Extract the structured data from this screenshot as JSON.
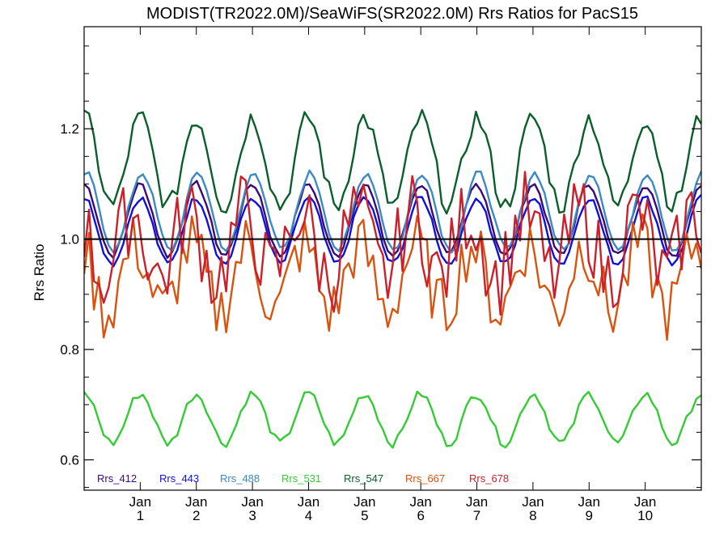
{
  "chart_data": {
    "type": "line",
    "title": "MODIST(TR2022.0M)/SeaWiFS(SR2022.0M)  Rrs Ratios for PacS15",
    "ylabel": "Rrs Ratio",
    "xlabel": "",
    "xlim": [
      0,
      11
    ],
    "ylim": [
      0.545,
      1.385
    ],
    "yticks": [
      0.6,
      0.8,
      1.0,
      1.2
    ],
    "ytick_labels": [
      "0.6",
      "0.8",
      "1.0",
      "1.2"
    ],
    "xticks": [
      {
        "x": 1,
        "top": "Jan",
        "bottom": "1"
      },
      {
        "x": 2,
        "top": "Jan",
        "bottom": "2"
      },
      {
        "x": 3,
        "top": "Jan",
        "bottom": "3"
      },
      {
        "x": 4,
        "top": "Jan",
        "bottom": "4"
      },
      {
        "x": 5,
        "top": "Jan",
        "bottom": "5"
      },
      {
        "x": 6,
        "top": "Jan",
        "bottom": "6"
      },
      {
        "x": 7,
        "top": "Jan",
        "bottom": "7"
      },
      {
        "x": 8,
        "top": "Jan",
        "bottom": "8"
      },
      {
        "x": 9,
        "top": "Jan",
        "bottom": "9"
      },
      {
        "x": 10,
        "top": "Jan",
        "bottom": "10"
      }
    ],
    "reference_line": 1.0,
    "grid": false,
    "legend_position": "bottom-left",
    "series": [
      {
        "name": "Rrs_412",
        "color": "#3a0a7a",
        "base": 1.035,
        "amp": 0.065,
        "noise": 0.006,
        "phase": 0.0
      },
      {
        "name": "Rrs_443",
        "color": "#1010dd",
        "base": 1.015,
        "amp": 0.06,
        "noise": 0.006,
        "phase": 0.0
      },
      {
        "name": "Rrs_488",
        "color": "#3a8ac6",
        "base": 1.05,
        "amp": 0.07,
        "noise": 0.006,
        "phase": -0.2
      },
      {
        "name": "Rrs_531",
        "color": "#33cc33",
        "base": 0.675,
        "amp": 0.045,
        "noise": 0.008,
        "phase": 0.0
      },
      {
        "name": "Rrs_547",
        "color": "#0a5e2a",
        "base": 1.14,
        "amp": 0.08,
        "noise": 0.02,
        "phase": 0.0
      },
      {
        "name": "Rrs_667",
        "color": "#d9530e",
        "base": 0.93,
        "amp": 0.06,
        "noise": 0.06,
        "phase": 0.6
      },
      {
        "name": "Rrs_678",
        "color": "#cc1f2a",
        "base": 0.99,
        "amp": 0.06,
        "noise": 0.075,
        "phase": 0.9
      }
    ]
  }
}
